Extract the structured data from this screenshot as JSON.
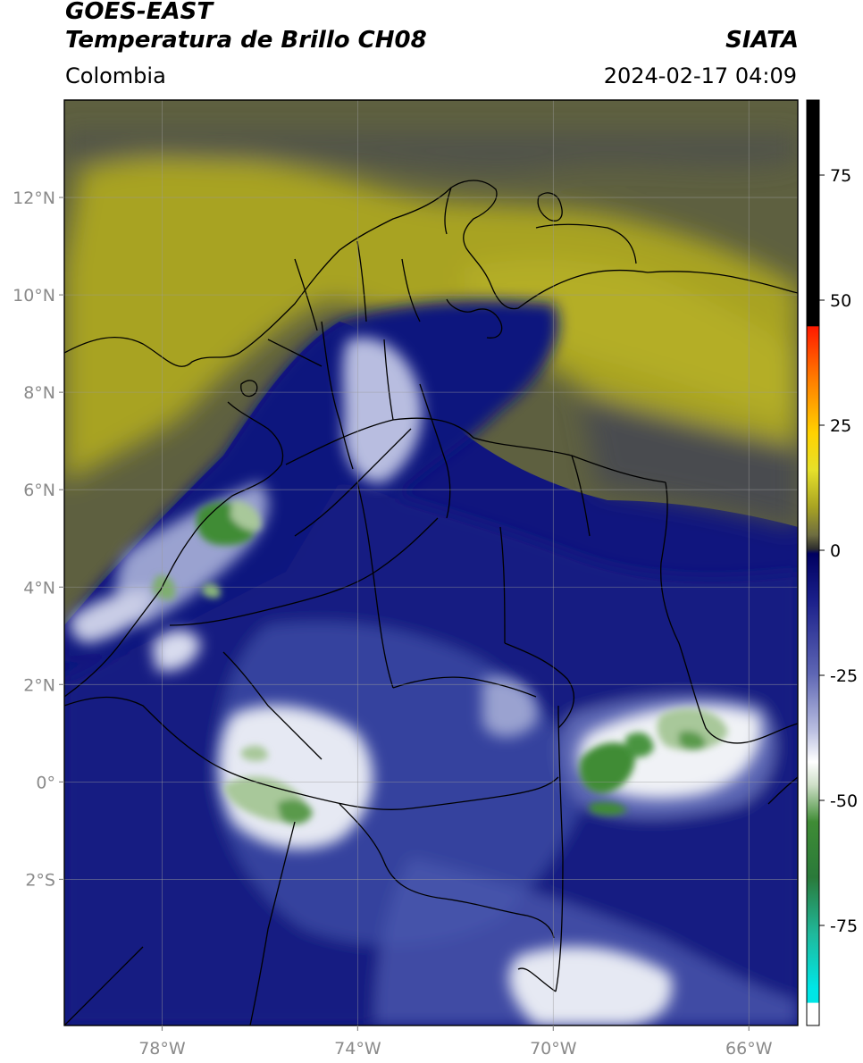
{
  "header": {
    "satellite": "GOES-EAST",
    "product": "Temperatura de Brillo CH08",
    "brand": "SIATA",
    "region": "Colombia",
    "datetime": "2024-02-17 04:09"
  },
  "map": {
    "lon_range": [
      -80,
      -65
    ],
    "lat_range": [
      -5,
      14
    ],
    "lat_ticks": [
      {
        "value": 12,
        "label": "12°N"
      },
      {
        "value": 10,
        "label": "10°N"
      },
      {
        "value": 8,
        "label": "8°N"
      },
      {
        "value": 6,
        "label": "6°N"
      },
      {
        "value": 4,
        "label": "4°N"
      },
      {
        "value": 2,
        "label": "2°N"
      },
      {
        "value": 0,
        "label": "0°"
      },
      {
        "value": -2,
        "label": "2°S"
      }
    ],
    "lon_ticks": [
      {
        "value": -78,
        "label": "78°W"
      },
      {
        "value": -74,
        "label": "74°W"
      },
      {
        "value": -70,
        "label": "70°W"
      },
      {
        "value": -66,
        "label": "66°W"
      }
    ],
    "colors": {
      "yellow_olive": "#a8a323",
      "dark_olive": "#5e6040",
      "deep_blue": "#10157e",
      "mid_blue": "#3c4aa3",
      "light_blue": "#8e96c8",
      "white": "#f2f4f6",
      "pale_green": "#a8c89a",
      "green": "#3f8c35"
    }
  },
  "colorbar": {
    "range": [
      -95,
      90
    ],
    "ticks": [
      {
        "value": 75,
        "label": "75"
      },
      {
        "value": 50,
        "label": "50"
      },
      {
        "value": 25,
        "label": "25"
      },
      {
        "value": 0,
        "label": "0"
      },
      {
        "value": -25,
        "label": "-25"
      },
      {
        "value": -50,
        "label": "-50"
      },
      {
        "value": -75,
        "label": "-75"
      }
    ]
  }
}
